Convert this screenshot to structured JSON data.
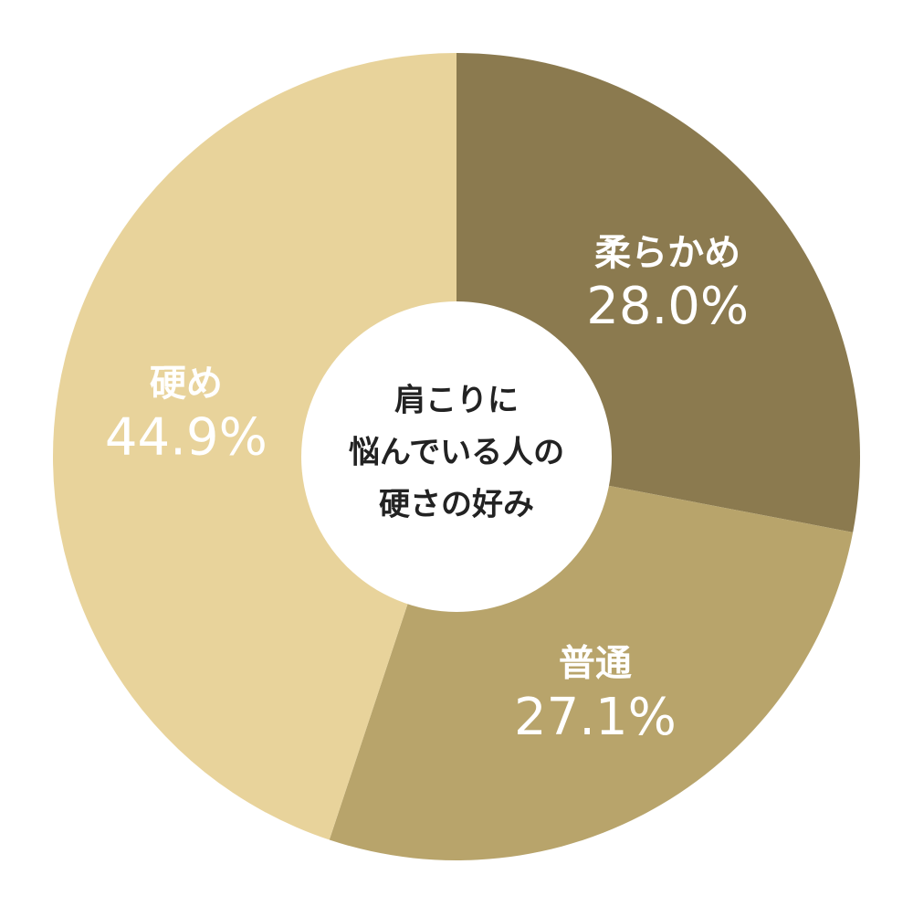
{
  "chart_data": {
    "type": "donut",
    "title": [
      "肩こりに",
      "悩んでいる人の",
      "硬さの好み"
    ],
    "categories": [
      "柔らかめ",
      "普通",
      "硬め"
    ],
    "values": [
      28.0,
      27.1,
      44.9
    ],
    "value_labels": [
      "28.0%",
      "27.1%",
      "44.9%"
    ],
    "colors": [
      "#8b7a4f",
      "#b8a46b",
      "#e8d39b"
    ]
  }
}
